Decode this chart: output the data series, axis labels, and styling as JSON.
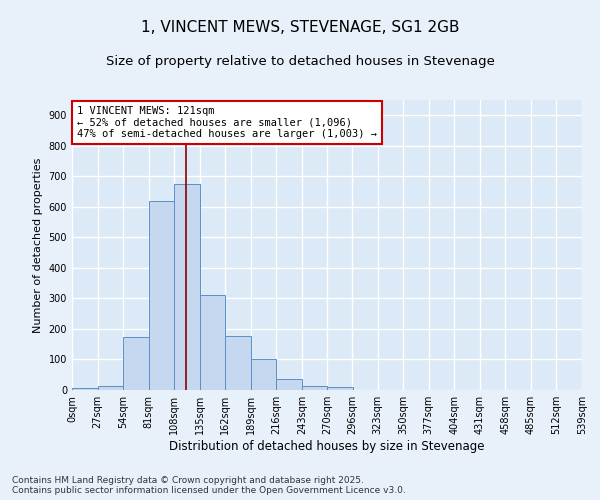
{
  "title": "1, VINCENT MEWS, STEVENAGE, SG1 2GB",
  "subtitle": "Size of property relative to detached houses in Stevenage",
  "xlabel": "Distribution of detached houses by size in Stevenage",
  "ylabel": "Number of detached properties",
  "bar_color": "#c5d8f0",
  "bar_edge_color": "#5b8fc9",
  "background_color": "#dce9f7",
  "fig_background_color": "#e8f0fa",
  "grid_color": "#ffffff",
  "annotation_text": "1 VINCENT MEWS: 121sqm\n← 52% of detached houses are smaller (1,096)\n47% of semi-detached houses are larger (1,003) →",
  "annotation_box_facecolor": "#ffffff",
  "annotation_box_edgecolor": "#cc0000",
  "vline_color": "#8b0000",
  "vline_x": 121,
  "bin_edges": [
    0,
    27,
    54,
    81,
    108,
    135,
    162,
    189,
    216,
    243,
    270,
    296,
    323,
    350,
    377,
    404,
    431,
    458,
    485,
    512,
    539
  ],
  "bar_heights": [
    7,
    12,
    175,
    618,
    675,
    310,
    178,
    100,
    37,
    14,
    10,
    0,
    0,
    0,
    0,
    0,
    0,
    0,
    0,
    0
  ],
  "tick_labels": [
    "0sqm",
    "27sqm",
    "54sqm",
    "81sqm",
    "108sqm",
    "135sqm",
    "162sqm",
    "189sqm",
    "216sqm",
    "243sqm",
    "270sqm",
    "296sqm",
    "323sqm",
    "350sqm",
    "377sqm",
    "404sqm",
    "431sqm",
    "458sqm",
    "485sqm",
    "512sqm",
    "539sqm"
  ],
  "ylim": [
    0,
    950
  ],
  "yticks": [
    0,
    100,
    200,
    300,
    400,
    500,
    600,
    700,
    800,
    900
  ],
  "footer_text": "Contains HM Land Registry data © Crown copyright and database right 2025.\nContains public sector information licensed under the Open Government Licence v3.0.",
  "title_fontsize": 11,
  "subtitle_fontsize": 9.5,
  "xlabel_fontsize": 8.5,
  "ylabel_fontsize": 8,
  "tick_fontsize": 7,
  "annotation_fontsize": 7.5,
  "footer_fontsize": 6.5
}
